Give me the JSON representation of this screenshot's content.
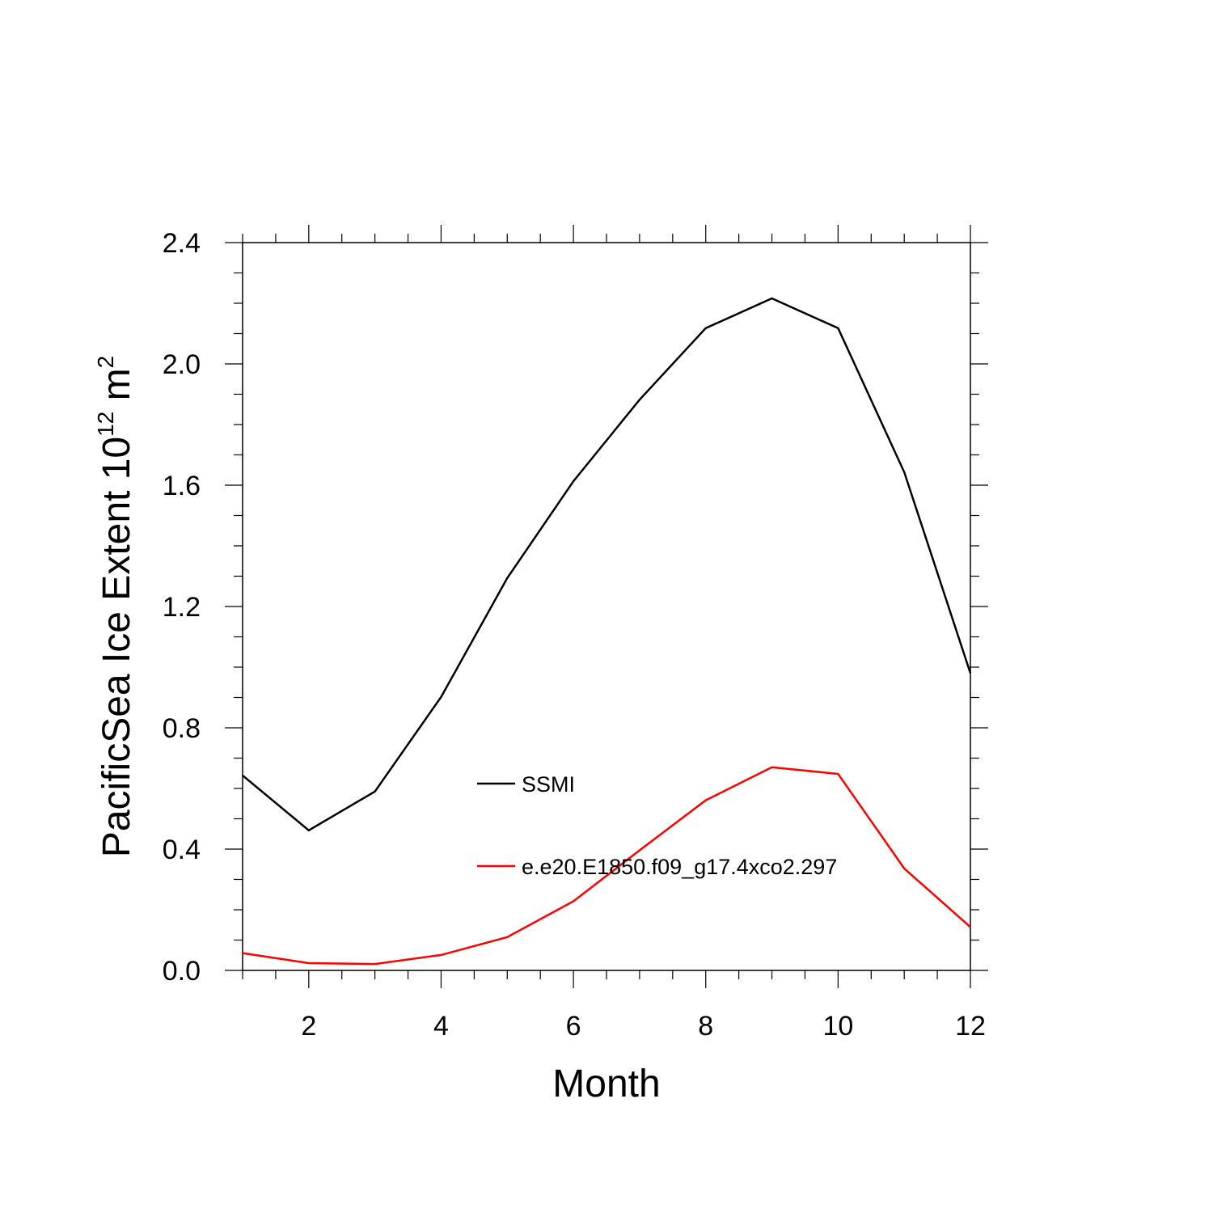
{
  "chart_data": {
    "type": "line",
    "title": "",
    "xlabel": "Month",
    "ylabel": {
      "text": "PacificSea Ice Extent 10",
      "exponent": "12",
      "unit": "m",
      "unit_exponent": "2"
    },
    "xlim": [
      1,
      12
    ],
    "ylim": [
      0,
      2.4
    ],
    "x_ticks": [
      2,
      4,
      6,
      8,
      10,
      12
    ],
    "y_ticks": [
      "0.0",
      "0.4",
      "0.8",
      "1.2",
      "1.6",
      "2.0",
      "2.4"
    ],
    "x": [
      1,
      2,
      3,
      4,
      5,
      6,
      7,
      8,
      9,
      10,
      11,
      12
    ],
    "series": [
      {
        "name": "SSMI",
        "color": "#000000",
        "values": [
          0.643,
          0.462,
          0.59,
          0.902,
          1.294,
          1.613,
          1.882,
          2.118,
          2.216,
          2.118,
          1.643,
          0.98
        ]
      },
      {
        "name": "e.e20.E1850.f09_g17.4xco2.297",
        "color": "#ff0000",
        "values": [
          0.057,
          0.024,
          0.021,
          0.051,
          0.11,
          0.228,
          0.396,
          0.561,
          0.67,
          0.648,
          0.336,
          0.143
        ]
      }
    ],
    "legend_position": "inside-center"
  }
}
